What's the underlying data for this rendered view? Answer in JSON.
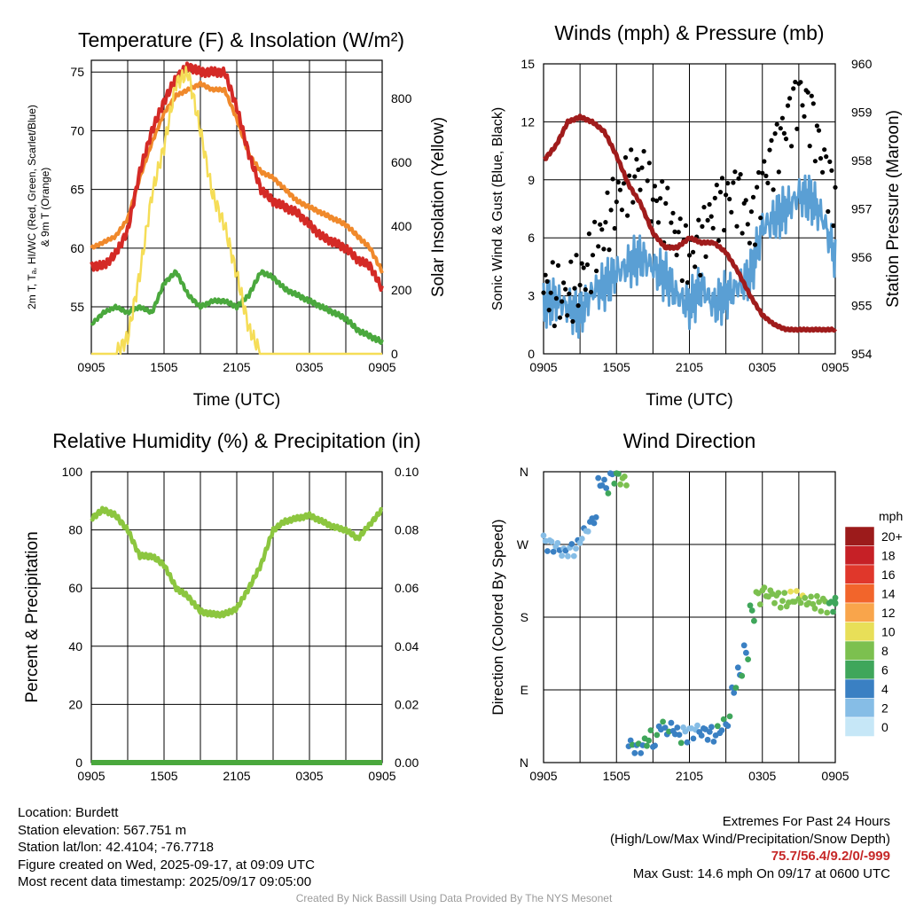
{
  "panels": {
    "temperature": {
      "title": "Temperature (F) & Insolation (W/m²)",
      "ylabel_left": [
        "2m T, Tₐ, HI/WC (Red, Green, Scarlet/Blue)",
        "& 9m T (Orange)"
      ],
      "ylabel_right": "Solar Insolation (Yellow)",
      "xlabel": "Time (UTC)"
    },
    "winds": {
      "title": "Winds (mph) & Pressure (mb)",
      "ylabel_left": "Sonic Wind & Gust (Blue, Black)",
      "ylabel_right": "Station Pressure (Maroon)",
      "xlabel": "Time (UTC)"
    },
    "humidity": {
      "title": "Relative Humidity (%) & Precipitation (in)",
      "ylabel_left": "Percent & Precipitation"
    },
    "direction": {
      "title": "Wind Direction",
      "ylabel_left": "Direction (Colored By Speed)",
      "legend_title": "mph",
      "legend": [
        {
          "label": "20+",
          "color": "#9c1b1b"
        },
        {
          "label": "18",
          "color": "#c62026"
        },
        {
          "label": "16",
          "color": "#e0372b"
        },
        {
          "label": "14",
          "color": "#f2652b"
        },
        {
          "label": "12",
          "color": "#f9a54b"
        },
        {
          "label": "10",
          "color": "#e8df58"
        },
        {
          "label": "8",
          "color": "#7cc04f"
        },
        {
          "label": "6",
          "color": "#3fa65b"
        },
        {
          "label": "4",
          "color": "#3a80c3"
        },
        {
          "label": "2",
          "color": "#86bde6"
        },
        {
          "label": "0",
          "color": "#c6e7f7"
        }
      ]
    }
  },
  "chart_data": [
    {
      "type": "line",
      "title": "Temperature (F) & Insolation (W/m²)",
      "xlabel": "Time (UTC)",
      "x_ticks": [
        "0905",
        "1505",
        "2105",
        "0305",
        "0905"
      ],
      "ylim": [
        51,
        76
      ],
      "y_ticks": [
        55,
        60,
        65,
        70,
        75
      ],
      "y2lim": [
        0,
        920
      ],
      "y2_ticks": [
        0,
        200,
        400,
        600,
        800
      ],
      "x": [
        0,
        1,
        2,
        3,
        4,
        5,
        6,
        7,
        8,
        9,
        10,
        11,
        12,
        13,
        14,
        15,
        16,
        17,
        18,
        19,
        20,
        21,
        22,
        23,
        24
      ],
      "series": [
        {
          "color": "#f0892b",
          "values": [
            60,
            60.5,
            61,
            62.5,
            66,
            69,
            71.5,
            73,
            73.5,
            74,
            73.5,
            73.5,
            71,
            68,
            66.5,
            66,
            65,
            64,
            63.5,
            63,
            62.5,
            62,
            61,
            60,
            58
          ]
        },
        {
          "color": "#d42a26",
          "values": [
            58.5,
            58.5,
            59.5,
            61.5,
            66.5,
            70,
            72.5,
            74.5,
            75.5,
            75,
            75,
            75,
            72,
            68,
            65,
            64,
            63.5,
            63,
            62,
            61,
            60.5,
            60,
            59,
            58.5,
            56.5
          ]
        },
        {
          "color": "#4aa83d",
          "values": [
            53.5,
            54.5,
            55,
            54.5,
            55,
            54.5,
            57,
            58,
            56,
            55,
            55.5,
            55.5,
            55,
            56,
            58,
            57.5,
            56.5,
            56,
            55.5,
            55,
            54.5,
            54,
            53,
            52.5,
            52
          ]
        },
        {
          "color": "#f5dd57",
          "values": [
            0,
            0,
            0,
            50,
            250,
            500,
            650,
            850,
            880,
            700,
            500,
            400,
            250,
            80,
            0,
            0,
            0,
            0,
            0,
            0,
            0,
            0,
            0,
            0,
            0
          ]
        }
      ]
    },
    {
      "type": "line",
      "title": "Winds (mph) & Pressure (mb)",
      "xlabel": "Time (UTC)",
      "x_ticks": [
        "0905",
        "1505",
        "2105",
        "0305",
        "0905"
      ],
      "ylim": [
        0,
        15
      ],
      "y_ticks": [
        0,
        3,
        6,
        9,
        12,
        15
      ],
      "y2lim": [
        954,
        960
      ],
      "y2_ticks": [
        954,
        955,
        956,
        957,
        958,
        959,
        960
      ],
      "x": [
        0,
        1,
        2,
        3,
        4,
        5,
        6,
        7,
        8,
        9,
        10,
        11,
        12,
        13,
        14,
        15,
        16,
        17,
        18,
        19,
        20,
        21,
        22,
        23,
        24
      ],
      "series": [
        {
          "color": "#5a9fd4",
          "values": [
            2.5,
            2.8,
            2.4,
            2,
            3.2,
            3.5,
            4.2,
            4.6,
            5,
            4.5,
            4,
            3,
            2.5,
            3.5,
            2.5,
            3,
            3.5,
            4,
            6.5,
            7,
            7.5,
            8.2,
            8,
            7,
            5
          ]
        },
        {
          "color": "#000000",
          "values": [
            3.5,
            3,
            3,
            3.8,
            5,
            6.5,
            8,
            9,
            9.5,
            8,
            7.5,
            6,
            5,
            6,
            7.5,
            8,
            8.5,
            6.5,
            9,
            10.5,
            12,
            13.5,
            12.5,
            10,
            8
          ]
        },
        {
          "color": "#a01c1c",
          "values": [
            958,
            958.3,
            958.8,
            958.9,
            958.8,
            958.6,
            958.1,
            957.5,
            957.1,
            956.5,
            956.2,
            956.2,
            956.4,
            956.3,
            956.3,
            956.1,
            955.7,
            955.2,
            954.8,
            954.6,
            954.5,
            954.5,
            954.5,
            954.5,
            954.5
          ]
        }
      ]
    },
    {
      "type": "line",
      "title": "Relative Humidity (%) & Precipitation (in)",
      "x_ticks": [
        "0905",
        "1505",
        "2105",
        "0305",
        "0905"
      ],
      "ylim": [
        0,
        100
      ],
      "y_ticks": [
        0,
        20,
        40,
        60,
        80,
        100
      ],
      "y2lim": [
        0,
        0.1
      ],
      "y2_ticks": [
        "0.00",
        "0.02",
        "0.04",
        "0.06",
        "0.08",
        "0.10"
      ],
      "x": [
        0,
        1,
        2,
        3,
        4,
        5,
        6,
        7,
        8,
        9,
        10,
        11,
        12,
        13,
        14,
        15,
        16,
        17,
        18,
        19,
        20,
        21,
        22,
        23,
        24
      ],
      "series": [
        {
          "color": "#8cc63f",
          "values": [
            84,
            87,
            85,
            80,
            71,
            71,
            68,
            60,
            57,
            52,
            51,
            51,
            53,
            60,
            68,
            80,
            83,
            84,
            85,
            83,
            81,
            80,
            77,
            82,
            87
          ]
        },
        {
          "color": "#4aa83d",
          "values": [
            0,
            0,
            0,
            0,
            0,
            0,
            0,
            0,
            0,
            0,
            0,
            0,
            0,
            0,
            0,
            0,
            0,
            0,
            0,
            0,
            0,
            0,
            0,
            0,
            0
          ]
        }
      ]
    },
    {
      "type": "scatter",
      "title": "Wind Direction",
      "x_ticks": [
        "0905",
        "1505",
        "2105",
        "0305",
        "0905"
      ],
      "y_ticks": [
        "N",
        "E",
        "S",
        "W",
        "N"
      ],
      "ylim": [
        0,
        360
      ],
      "x": [
        0,
        0.5,
        1,
        1.5,
        2,
        2.5,
        3,
        3.5,
        4,
        4.5,
        5,
        5.5,
        6,
        6.5,
        7,
        7.5,
        8,
        8.5,
        9,
        9.5,
        10,
        10.5,
        11,
        11.5,
        12,
        12.5,
        13,
        13.5,
        14,
        14.5,
        15,
        15.5,
        16,
        16.5,
        17,
        17.5,
        18,
        18.5,
        19,
        19.5,
        20,
        20.5,
        21,
        21.5,
        22,
        22.5,
        23,
        23.5,
        24
      ],
      "y": [
        272,
        270,
        268,
        262,
        265,
        266,
        280,
        290,
        300,
        345,
        340,
        355,
        354,
        350,
        24,
        20,
        22,
        30,
        25,
        45,
        38,
        40,
        33,
        35,
        38,
        42,
        40,
        38,
        36,
        44,
        50,
        90,
        110,
        135,
        185,
        205,
        212,
        210,
        206,
        202,
        202,
        204,
        202,
        198,
        196,
        196,
        195,
        194,
        200
      ],
      "speeds": [
        2,
        2,
        2,
        2,
        2,
        2,
        2,
        2,
        3,
        3,
        4,
        4,
        6,
        7,
        4,
        4,
        4,
        5,
        4,
        4,
        4,
        3,
        4,
        2,
        2,
        2,
        3,
        3,
        4,
        4,
        4,
        4,
        4,
        4,
        5,
        7,
        7,
        7,
        7,
        7,
        8,
        8,
        8,
        7,
        7,
        7,
        7,
        5,
        5
      ]
    }
  ],
  "info": {
    "location": "Location: Burdett",
    "elevation": "Station elevation: 567.751 m",
    "latlon": "Station lat/lon: 42.4104; -76.7718",
    "created": "Figure created on Wed, 2025-09-17, at 09:09 UTC",
    "recent": "Most recent data timestamp: 2025/09/17 09:05:00",
    "extremes_title": "Extremes For Past 24 Hours",
    "extremes_sub": "(High/Low/Max Wind/Precipitation/Snow Depth)",
    "extremes_values": "75.7/56.4/9.2/0/-999",
    "max_gust": "Max Gust: 14.6 mph On 09/17 at 0600 UTC"
  },
  "credit": "Created By Nick Bassill Using Data Provided By The NYS Mesonet"
}
